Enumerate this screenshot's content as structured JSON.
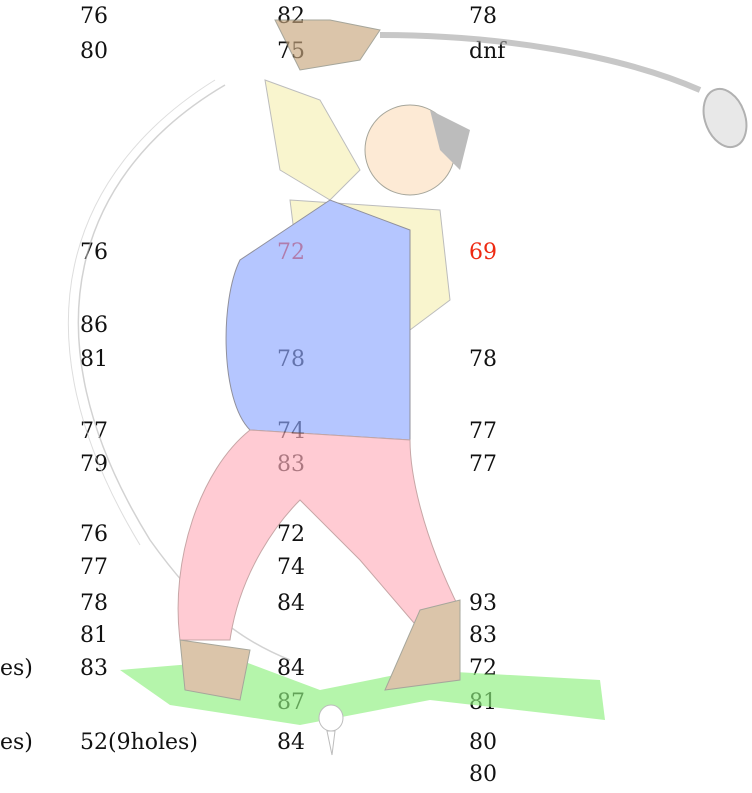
{
  "table": {
    "rows": [
      [
        null,
        "76",
        "82",
        "78"
      ],
      [
        null,
        "80",
        "75",
        "dnf"
      ],
      [
        null,
        "76",
        "72",
        "69"
      ],
      [
        null,
        "86",
        null,
        null
      ],
      [
        null,
        "81",
        "78",
        "78"
      ],
      [
        null,
        "77",
        "74",
        "77"
      ],
      [
        null,
        "79",
        "83",
        "77"
      ],
      [
        null,
        "76",
        "72",
        null
      ],
      [
        null,
        "77",
        "74",
        null
      ],
      [
        null,
        "78",
        "84",
        "93"
      ],
      [
        null,
        "81",
        null,
        "83"
      ],
      [
        "es)",
        "83",
        "84",
        "72"
      ],
      [
        null,
        null,
        "87",
        "81"
      ],
      [
        "es)",
        "52(9holes)",
        "84",
        "80"
      ],
      [
        null,
        null,
        null,
        "80"
      ]
    ]
  }
}
